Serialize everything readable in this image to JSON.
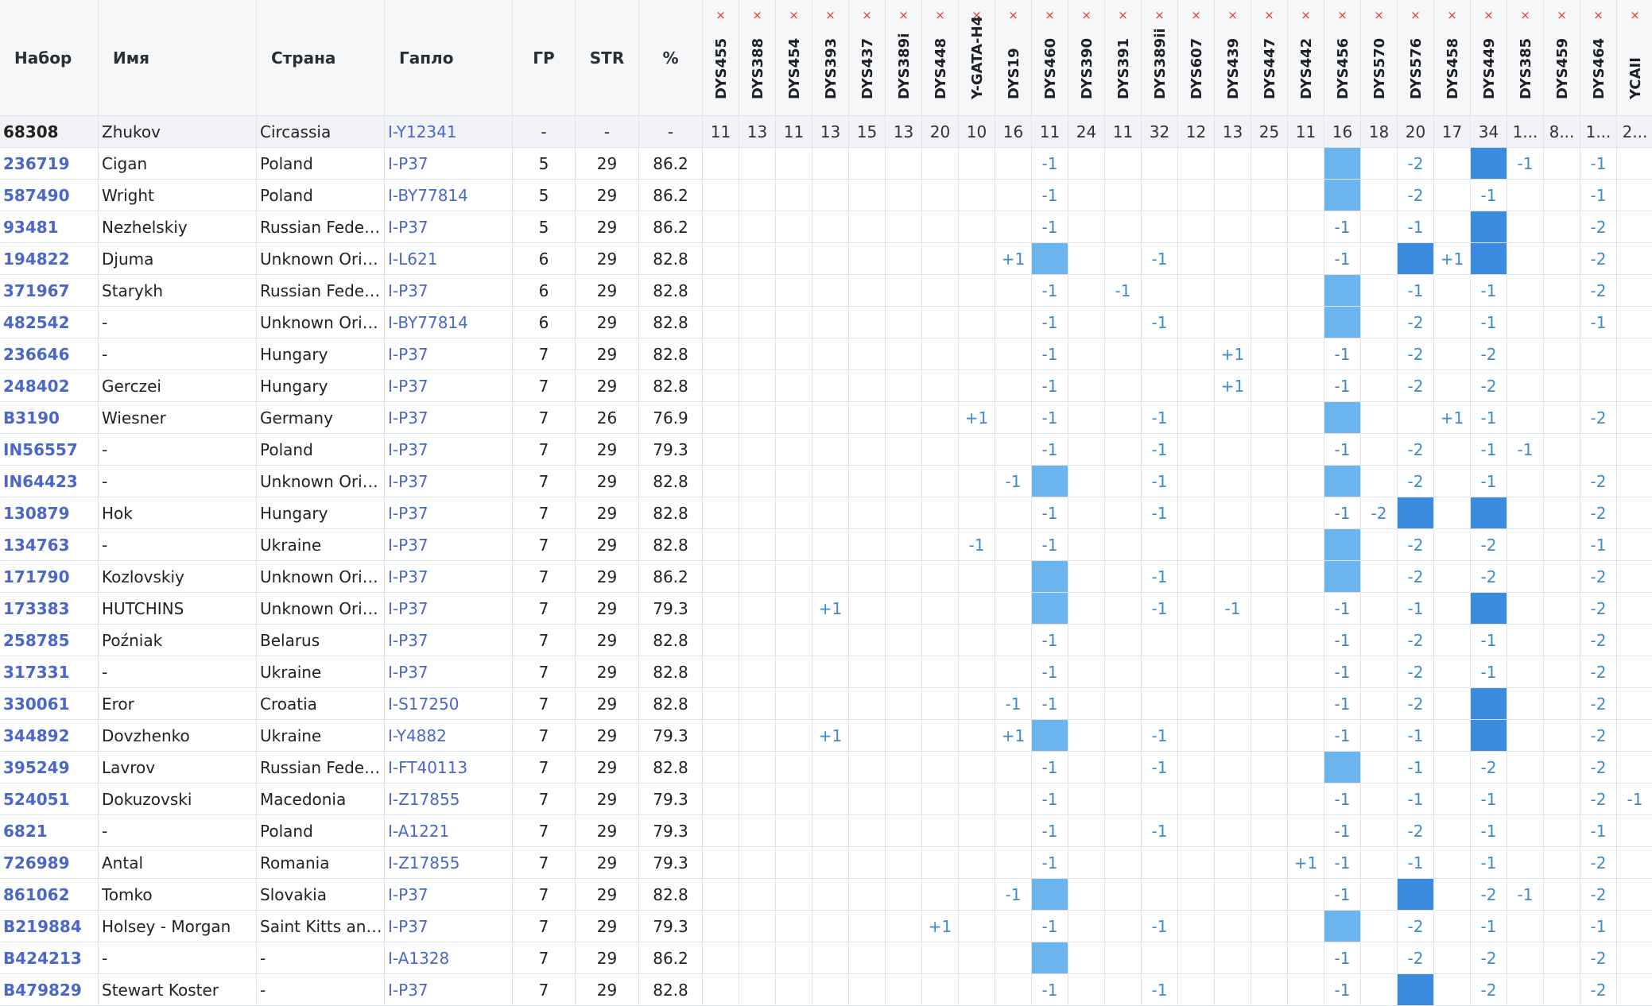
{
  "columns": {
    "kit": "Набор",
    "name": "Имя",
    "country": "Страна",
    "haplo": "Гапло",
    "gd": "ГР",
    "str": "STR",
    "pct": "%"
  },
  "remove_marker_glyph": "×",
  "markers": [
    "DYS455",
    "DYS388",
    "DYS454",
    "DYS393",
    "DYS437",
    "DYS389i",
    "DYS448",
    "Y-GATA-H4",
    "DYS19",
    "DYS460",
    "DYS390",
    "DYS391",
    "DYS389ii",
    "DYS607",
    "DYS439",
    "DYS447",
    "DYS442",
    "DYS456",
    "DYS570",
    "DYS576",
    "DYS458",
    "DYS449",
    "DYS385",
    "DYS459",
    "DYS464",
    "YCAII"
  ],
  "colors": {
    "link": "#4a67c9",
    "diff": "#3b8bd6",
    "highlight_light": "#6bb4ee",
    "highlight_dark": "#3a8ae0",
    "remove_x": "#e03a3a"
  },
  "reference": {
    "kit": "68308",
    "name": "Zhukov",
    "country": "Circassia",
    "haplo": "I-Y12341",
    "gd": "-",
    "str": "-",
    "pct": "-",
    "values": [
      "11",
      "13",
      "11",
      "13",
      "15",
      "13",
      "20",
      "10",
      "16",
      "11",
      "24",
      "11",
      "32",
      "12",
      "13",
      "25",
      "11",
      "16",
      "18",
      "20",
      "17",
      "34",
      "1...",
      "8...",
      "1...",
      "2..."
    ]
  },
  "rows": [
    {
      "kit": "236719",
      "name": "Cigan",
      "country": "Poland",
      "haplo": "I-P37",
      "gd": "5",
      "str": "29",
      "pct": "86.2",
      "cells": [
        "",
        "",
        "",
        "",
        "",
        "",
        "",
        "",
        "",
        "-1",
        "",
        "",
        "",
        "",
        "",
        "",
        "",
        "H1",
        "",
        "-2",
        "",
        "H2",
        "-1",
        "",
        "-1",
        ""
      ]
    },
    {
      "kit": "587490",
      "name": "Wright",
      "country": "Poland",
      "haplo": "I-BY77814",
      "gd": "5",
      "str": "29",
      "pct": "86.2",
      "cells": [
        "",
        "",
        "",
        "",
        "",
        "",
        "",
        "",
        "",
        "-1",
        "",
        "",
        "",
        "",
        "",
        "",
        "",
        "H1",
        "",
        "-2",
        "",
        "-1",
        "",
        "",
        "-1",
        ""
      ]
    },
    {
      "kit": "93481",
      "name": "Nezhelskiy",
      "country": "Russian Federat...",
      "haplo": "I-P37",
      "gd": "5",
      "str": "29",
      "pct": "86.2",
      "cells": [
        "",
        "",
        "",
        "",
        "",
        "",
        "",
        "",
        "",
        "-1",
        "",
        "",
        "",
        "",
        "",
        "",
        "",
        "-1",
        "",
        "-1",
        "",
        "H2",
        "",
        "",
        "-2",
        ""
      ]
    },
    {
      "kit": "194822",
      "name": "Djuma",
      "country": "Unknown Origin",
      "haplo": "I-L621",
      "gd": "6",
      "str": "29",
      "pct": "82.8",
      "cells": [
        "",
        "",
        "",
        "",
        "",
        "",
        "",
        "",
        "+1",
        "H1",
        "",
        "",
        "-1",
        "",
        "",
        "",
        "",
        "-1",
        "",
        "H2",
        "+1",
        "H2",
        "",
        "",
        "-2",
        ""
      ]
    },
    {
      "kit": "371967",
      "name": "Starykh",
      "country": "Russian Federat...",
      "haplo": "I-P37",
      "gd": "6",
      "str": "29",
      "pct": "82.8",
      "cells": [
        "",
        "",
        "",
        "",
        "",
        "",
        "",
        "",
        "",
        "-1",
        "",
        "-1",
        "",
        "",
        "",
        "",
        "",
        "H1",
        "",
        "-1",
        "",
        "-1",
        "",
        "",
        "-2",
        ""
      ]
    },
    {
      "kit": "482542",
      "name": "-",
      "country": "Unknown Origin",
      "haplo": "I-BY77814",
      "gd": "6",
      "str": "29",
      "pct": "82.8",
      "cells": [
        "",
        "",
        "",
        "",
        "",
        "",
        "",
        "",
        "",
        "-1",
        "",
        "",
        "-1",
        "",
        "",
        "",
        "",
        "H1",
        "",
        "-2",
        "",
        "-1",
        "",
        "",
        "-1",
        ""
      ]
    },
    {
      "kit": "236646",
      "name": "-",
      "country": "Hungary",
      "haplo": "I-P37",
      "gd": "7",
      "str": "29",
      "pct": "82.8",
      "cells": [
        "",
        "",
        "",
        "",
        "",
        "",
        "",
        "",
        "",
        "-1",
        "",
        "",
        "",
        "",
        "+1",
        "",
        "",
        "-1",
        "",
        "-2",
        "",
        "-2",
        "",
        "",
        "",
        ""
      ]
    },
    {
      "kit": "248402",
      "name": "Gerczei",
      "country": "Hungary",
      "haplo": "I-P37",
      "gd": "7",
      "str": "29",
      "pct": "82.8",
      "cells": [
        "",
        "",
        "",
        "",
        "",
        "",
        "",
        "",
        "",
        "-1",
        "",
        "",
        "",
        "",
        "+1",
        "",
        "",
        "-1",
        "",
        "-2",
        "",
        "-2",
        "",
        "",
        "",
        ""
      ]
    },
    {
      "kit": "B3190",
      "name": "Wiesner",
      "country": "Germany",
      "haplo": "I-P37",
      "gd": "7",
      "str": "26",
      "pct": "76.9",
      "cells": [
        "",
        "",
        "",
        "",
        "",
        "",
        "",
        "+1",
        "",
        "-1",
        "",
        "",
        "-1",
        "",
        "",
        "",
        "",
        "H1",
        "",
        "",
        "+1",
        "-1",
        "",
        "",
        "-2",
        ""
      ]
    },
    {
      "kit": "IN56557",
      "name": "-",
      "country": "Poland",
      "haplo": "I-P37",
      "gd": "7",
      "str": "29",
      "pct": "79.3",
      "cells": [
        "",
        "",
        "",
        "",
        "",
        "",
        "",
        "",
        "",
        "-1",
        "",
        "",
        "-1",
        "",
        "",
        "",
        "",
        "-1",
        "",
        "-2",
        "",
        "-1",
        "-1",
        "",
        "",
        ""
      ]
    },
    {
      "kit": "IN64423",
      "name": "-",
      "country": "Unknown Origin",
      "haplo": "I-P37",
      "gd": "7",
      "str": "29",
      "pct": "82.8",
      "cells": [
        "",
        "",
        "",
        "",
        "",
        "",
        "",
        "",
        "-1",
        "H1",
        "",
        "",
        "-1",
        "",
        "",
        "",
        "",
        "H1",
        "",
        "-2",
        "",
        "-1",
        "",
        "",
        "-2",
        ""
      ]
    },
    {
      "kit": "130879",
      "name": "Hok",
      "country": "Hungary",
      "haplo": "I-P37",
      "gd": "7",
      "str": "29",
      "pct": "82.8",
      "cells": [
        "",
        "",
        "",
        "",
        "",
        "",
        "",
        "",
        "",
        "-1",
        "",
        "",
        "-1",
        "",
        "",
        "",
        "",
        "-1",
        "-2",
        "H2",
        "",
        "H2",
        "",
        "",
        "-2",
        ""
      ]
    },
    {
      "kit": "134763",
      "name": "-",
      "country": "Ukraine",
      "haplo": "I-P37",
      "gd": "7",
      "str": "29",
      "pct": "82.8",
      "cells": [
        "",
        "",
        "",
        "",
        "",
        "",
        "",
        "-1",
        "",
        "-1",
        "",
        "",
        "",
        "",
        "",
        "",
        "",
        "H1",
        "",
        "-2",
        "",
        "-2",
        "",
        "",
        "-1",
        ""
      ]
    },
    {
      "kit": "171790",
      "name": "Kozlovskiy",
      "country": "Unknown Origin",
      "haplo": "I-P37",
      "gd": "7",
      "str": "29",
      "pct": "86.2",
      "cells": [
        "",
        "",
        "",
        "",
        "",
        "",
        "",
        "",
        "",
        "H1",
        "",
        "",
        "-1",
        "",
        "",
        "",
        "",
        "H1",
        "",
        "-2",
        "",
        "-2",
        "",
        "",
        "-2",
        ""
      ]
    },
    {
      "kit": "173383",
      "name": "HUTCHINS",
      "country": "Unknown Origin",
      "haplo": "I-P37",
      "gd": "7",
      "str": "29",
      "pct": "79.3",
      "cells": [
        "",
        "",
        "",
        "+1",
        "",
        "",
        "",
        "",
        "",
        "H1",
        "",
        "",
        "-1",
        "",
        "-1",
        "",
        "",
        "-1",
        "",
        "-1",
        "",
        "H2",
        "",
        "",
        "-2",
        ""
      ]
    },
    {
      "kit": "258785",
      "name": "Poźniak",
      "country": "Belarus",
      "haplo": "I-P37",
      "gd": "7",
      "str": "29",
      "pct": "82.8",
      "cells": [
        "",
        "",
        "",
        "",
        "",
        "",
        "",
        "",
        "",
        "-1",
        "",
        "",
        "",
        "",
        "",
        "",
        "",
        "-1",
        "",
        "-2",
        "",
        "-1",
        "",
        "",
        "-2",
        ""
      ]
    },
    {
      "kit": "317331",
      "name": "-",
      "country": "Ukraine",
      "haplo": "I-P37",
      "gd": "7",
      "str": "29",
      "pct": "82.8",
      "cells": [
        "",
        "",
        "",
        "",
        "",
        "",
        "",
        "",
        "",
        "-1",
        "",
        "",
        "",
        "",
        "",
        "",
        "",
        "-1",
        "",
        "-2",
        "",
        "-1",
        "",
        "",
        "-2",
        ""
      ]
    },
    {
      "kit": "330061",
      "name": "Eror",
      "country": "Croatia",
      "haplo": "I-S17250",
      "gd": "7",
      "str": "29",
      "pct": "82.8",
      "cells": [
        "",
        "",
        "",
        "",
        "",
        "",
        "",
        "",
        "-1",
        "-1",
        "",
        "",
        "",
        "",
        "",
        "",
        "",
        "-1",
        "",
        "-2",
        "",
        "H2",
        "",
        "",
        "-2",
        ""
      ]
    },
    {
      "kit": "344892",
      "name": "Dovzhenko",
      "country": "Ukraine",
      "haplo": "I-Y4882",
      "gd": "7",
      "str": "29",
      "pct": "79.3",
      "cells": [
        "",
        "",
        "",
        "+1",
        "",
        "",
        "",
        "",
        "+1",
        "H1",
        "",
        "",
        "-1",
        "",
        "",
        "",
        "",
        "-1",
        "",
        "-1",
        "",
        "H2",
        "",
        "",
        "-2",
        ""
      ]
    },
    {
      "kit": "395249",
      "name": "Lavrov",
      "country": "Russian Federat...",
      "haplo": "I-FT40113",
      "gd": "7",
      "str": "29",
      "pct": "82.8",
      "cells": [
        "",
        "",
        "",
        "",
        "",
        "",
        "",
        "",
        "",
        "-1",
        "",
        "",
        "-1",
        "",
        "",
        "",
        "",
        "H1",
        "",
        "-1",
        "",
        "-2",
        "",
        "",
        "-2",
        ""
      ]
    },
    {
      "kit": "524051",
      "name": "Dokuzovski",
      "country": "Macedonia",
      "haplo": "I-Z17855",
      "gd": "7",
      "str": "29",
      "pct": "79.3",
      "cells": [
        "",
        "",
        "",
        "",
        "",
        "",
        "",
        "",
        "",
        "-1",
        "",
        "",
        "",
        "",
        "",
        "",
        "",
        "-1",
        "",
        "-1",
        "",
        "-1",
        "",
        "",
        "-2",
        "-1"
      ]
    },
    {
      "kit": "6821",
      "name": "-",
      "country": "Poland",
      "haplo": "I-A1221",
      "gd": "7",
      "str": "29",
      "pct": "79.3",
      "cells": [
        "",
        "",
        "",
        "",
        "",
        "",
        "",
        "",
        "",
        "-1",
        "",
        "",
        "-1",
        "",
        "",
        "",
        "",
        "-1",
        "",
        "-2",
        "",
        "-1",
        "",
        "",
        "-1",
        ""
      ]
    },
    {
      "kit": "726989",
      "name": "Antal",
      "country": "Romania",
      "haplo": "I-Z17855",
      "gd": "7",
      "str": "29",
      "pct": "79.3",
      "cells": [
        "",
        "",
        "",
        "",
        "",
        "",
        "",
        "",
        "",
        "-1",
        "",
        "",
        "",
        "",
        "",
        "",
        "+1",
        "-1",
        "",
        "-1",
        "",
        "-1",
        "",
        "",
        "-2",
        ""
      ]
    },
    {
      "kit": "861062",
      "name": "Tomko",
      "country": "Slovakia",
      "haplo": "I-P37",
      "gd": "7",
      "str": "29",
      "pct": "82.8",
      "cells": [
        "",
        "",
        "",
        "",
        "",
        "",
        "",
        "",
        "-1",
        "H1",
        "",
        "",
        "",
        "",
        "",
        "",
        "",
        "-1",
        "",
        "H2",
        "",
        "-2",
        "-1",
        "",
        "-2",
        ""
      ]
    },
    {
      "kit": "B219884",
      "name": "Holsey - Morgan",
      "country": "Saint Kitts and ...",
      "haplo": "I-P37",
      "gd": "7",
      "str": "29",
      "pct": "79.3",
      "cells": [
        "",
        "",
        "",
        "",
        "",
        "",
        "+1",
        "",
        "",
        "-1",
        "",
        "",
        "-1",
        "",
        "",
        "",
        "",
        "H1",
        "",
        "-2",
        "",
        "-1",
        "",
        "",
        "-1",
        ""
      ]
    },
    {
      "kit": "B424213",
      "name": "-",
      "country": "-",
      "haplo": "I-A1328",
      "gd": "7",
      "str": "29",
      "pct": "86.2",
      "cells": [
        "",
        "",
        "",
        "",
        "",
        "",
        "",
        "",
        "",
        "H1",
        "",
        "",
        "",
        "",
        "",
        "",
        "",
        "-1",
        "",
        "-2",
        "",
        "-2",
        "",
        "",
        "-2",
        ""
      ]
    },
    {
      "kit": "B479829",
      "name": "Stewart Koster",
      "country": "-",
      "haplo": "I-P37",
      "gd": "7",
      "str": "29",
      "pct": "82.8",
      "cells": [
        "",
        "",
        "",
        "",
        "",
        "",
        "",
        "",
        "",
        "-1",
        "",
        "",
        "-1",
        "",
        "",
        "",
        "",
        "-1",
        "",
        "H2",
        "",
        "-2",
        "",
        "",
        "-2",
        ""
      ]
    }
  ]
}
